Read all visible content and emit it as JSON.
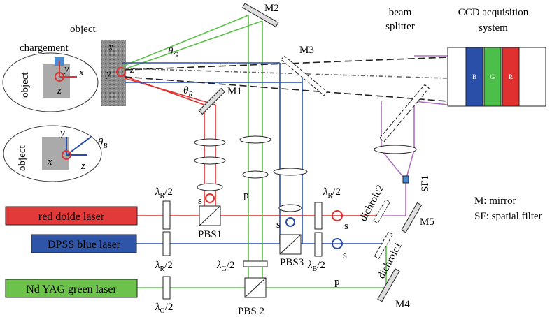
{
  "object_label": "object",
  "chargement": "chargement",
  "insets": [
    {
      "label": "object",
      "axes": [
        "y",
        "x",
        "z"
      ]
    },
    {
      "label": "object",
      "axes": [
        "y",
        "x",
        "z"
      ],
      "angle": {
        "symbol": "θ",
        "sub": "B"
      }
    }
  ],
  "object_axes": [
    "x",
    "y",
    "z"
  ],
  "angles": [
    {
      "symbol": "θ",
      "sub": "G"
    },
    {
      "symbol": "θ",
      "sub": "R"
    }
  ],
  "mirrors": [
    "M1",
    "M2",
    "M3",
    "M4",
    "M5"
  ],
  "beam_splitter": [
    "beam",
    "splitter"
  ],
  "ccd": {
    "title": [
      "CCD acquisition",
      "system"
    ],
    "channels": [
      "B",
      "G",
      "R"
    ]
  },
  "spatial_filter": "SF1",
  "dichroics": [
    "dichroic2",
    "dichroic1"
  ],
  "legend": [
    "M: mirror",
    "SF: spatial filter"
  ],
  "lasers": [
    "red doide laser",
    "DPSS blue laser",
    "Nd YAG green laser"
  ],
  "plates": [
    {
      "symbol": "λ",
      "sub": "R",
      "suffix": "/2"
    },
    {
      "symbol": "λ",
      "sub": "R",
      "suffix": "/2"
    },
    {
      "symbol": "λ",
      "sub": "R",
      "suffix": "/2"
    },
    {
      "symbol": "λ",
      "sub": "G",
      "suffix": "/2"
    },
    {
      "symbol": "λ",
      "sub": "B",
      "suffix": "/2"
    },
    {
      "symbol": "λ",
      "sub": "G",
      "suffix": "/2"
    }
  ],
  "pbs": [
    "PBS1",
    "PBS3",
    "PBS 2"
  ],
  "polarizations": [
    "s",
    "p",
    "s",
    "s",
    "s",
    "p"
  ]
}
